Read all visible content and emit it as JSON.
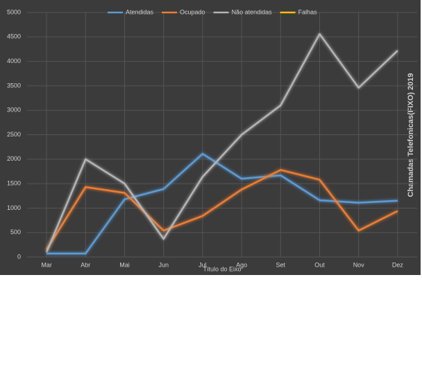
{
  "chart_data": {
    "type": "line",
    "title": "Chamadas Telefonicas(FIXO) 2019",
    "x_label": "Título do Eixo",
    "categories": [
      "Mar",
      "Abr",
      "Mai",
      "Jun",
      "Jul",
      "Ago",
      "Set",
      "Out",
      "Nov",
      "Dez"
    ],
    "series": [
      {
        "name": "Atendidas",
        "color": "#5b9bd5",
        "values": [
          70,
          70,
          1180,
          1390,
          2110,
          1600,
          1670,
          1160,
          1110,
          1150
        ]
      },
      {
        "name": "Ocupado",
        "color": "#ed7d31",
        "values": [
          150,
          1430,
          1310,
          540,
          840,
          1380,
          1780,
          1580,
          540,
          940
        ]
      },
      {
        "name": "Não atendidas",
        "color": "#b4b4b4",
        "values": [
          100,
          2000,
          1500,
          370,
          1640,
          2500,
          3100,
          4560,
          3460,
          4220
        ]
      },
      {
        "name": "Falhas",
        "color": "#ffc000",
        "values": [
          null,
          null,
          null,
          null,
          null,
          null,
          null,
          null,
          null,
          null
        ]
      }
    ],
    "ylim": [
      0,
      5000
    ],
    "yticks": [
      0,
      500,
      1000,
      1500,
      2000,
      2500,
      3000,
      3500,
      4000,
      4500,
      5000
    ],
    "grid": true,
    "legend": "top"
  }
}
